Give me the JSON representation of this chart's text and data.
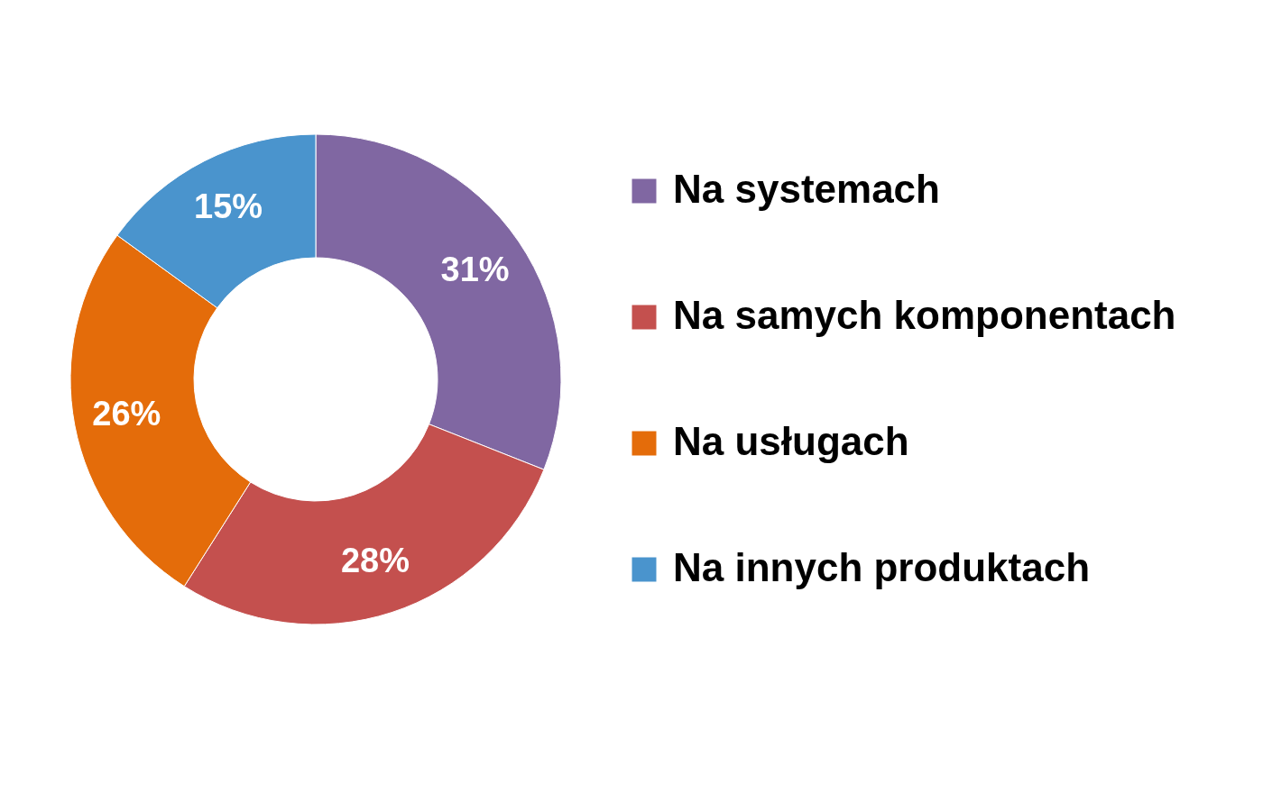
{
  "chart_data": {
    "type": "donut",
    "categories": [
      "Na systemach",
      "Na samych komponentach",
      "Na usługach",
      "Na innych produktach"
    ],
    "values": [
      31,
      28,
      26,
      15
    ],
    "colors": [
      "#8067a2",
      "#c4504e",
      "#e46c0a",
      "#4a94cd"
    ],
    "value_labels": [
      "31%",
      "28%",
      "26%",
      "15%"
    ],
    "legend": "right"
  }
}
